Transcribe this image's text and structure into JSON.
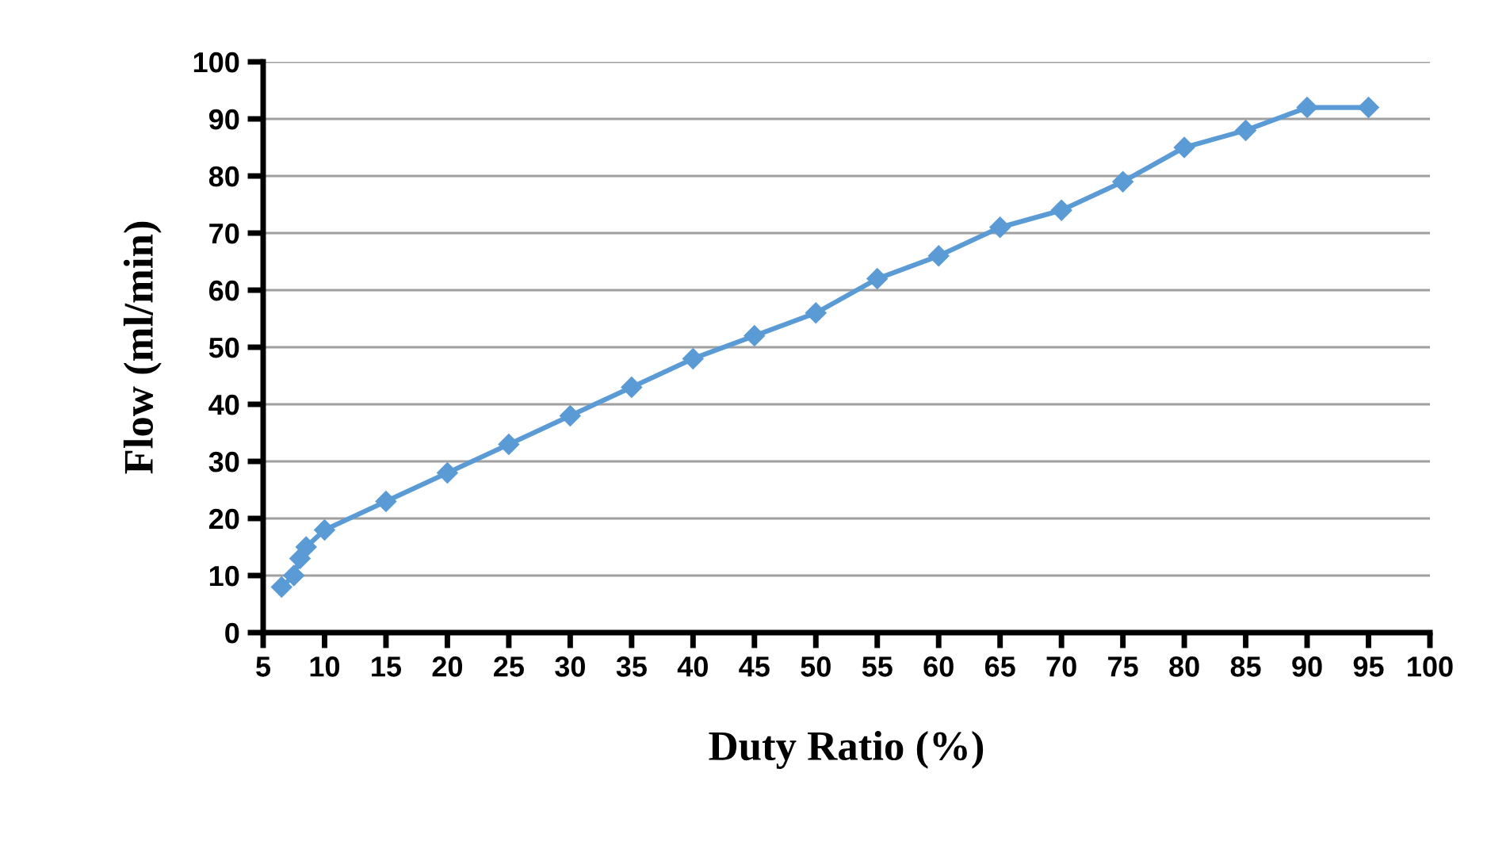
{
  "chart_data": {
    "type": "line",
    "xlabel": "Duty Ratio (%)",
    "ylabel": "Flow (ml/min)",
    "x": [
      6.5,
      7.5,
      8,
      8.5,
      10,
      15,
      20,
      25,
      30,
      35,
      40,
      45,
      50,
      55,
      60,
      65,
      70,
      75,
      80,
      85,
      90,
      95
    ],
    "series": [
      {
        "color": "#5b9bd5",
        "values": [
          8,
          10,
          13,
          15,
          18,
          23,
          28,
          33,
          38,
          43,
          48,
          52,
          56,
          62,
          66,
          71,
          74,
          79,
          85,
          88,
          92,
          92
        ]
      }
    ],
    "xlim": [
      5,
      100
    ],
    "xticks": [
      5,
      10,
      15,
      20,
      25,
      30,
      35,
      40,
      45,
      50,
      55,
      60,
      65,
      70,
      75,
      80,
      85,
      90,
      95,
      100
    ],
    "ylim": [
      0,
      100
    ],
    "yticks": [
      0,
      10,
      20,
      30,
      40,
      50,
      60,
      70,
      80,
      90,
      100
    ],
    "grid": "y",
    "marker": "diamond",
    "line_style": "solid",
    "legend": false
  }
}
